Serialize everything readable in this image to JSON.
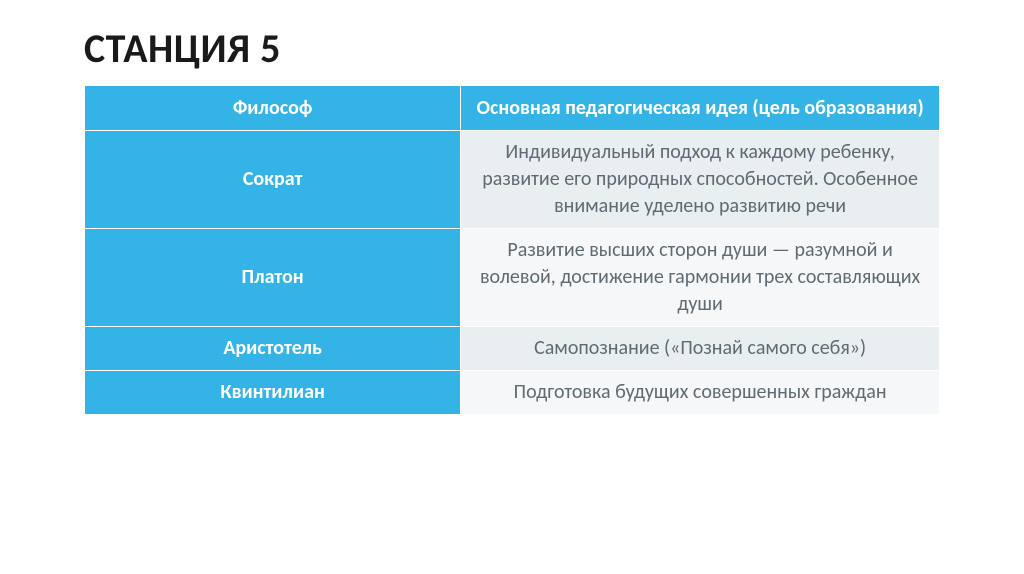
{
  "slide": {
    "title": "СТАНЦИЯ 5"
  },
  "table": {
    "header_bg": "#33b3e6",
    "header_fg": "#ffffff",
    "name_bg": "#33b3e6",
    "name_fg": "#ffffff",
    "desc_bg_even": "#e9eef1",
    "desc_bg_odd": "#f5f7f8",
    "desc_fg": "#5f6b73",
    "columns": {
      "left": "Философ",
      "right": "Основная педагогическая идея (цель образования)"
    },
    "rows": [
      {
        "name": "Сократ",
        "desc": "Индивидуальный подход к каждому ребенку, развитие его природных способностей. Особенное внимание уделено развитию речи"
      },
      {
        "name": "Платон",
        "desc": "Развитие высших сторон души — разумной и волевой, достижение гармонии трех составляющих души"
      },
      {
        "name": "Аристотель",
        "desc": "Самопознание («Познай самого себя»)"
      },
      {
        "name": "Квинтилиан",
        "desc": "Подготовка будущих совершенных граждан"
      }
    ]
  }
}
